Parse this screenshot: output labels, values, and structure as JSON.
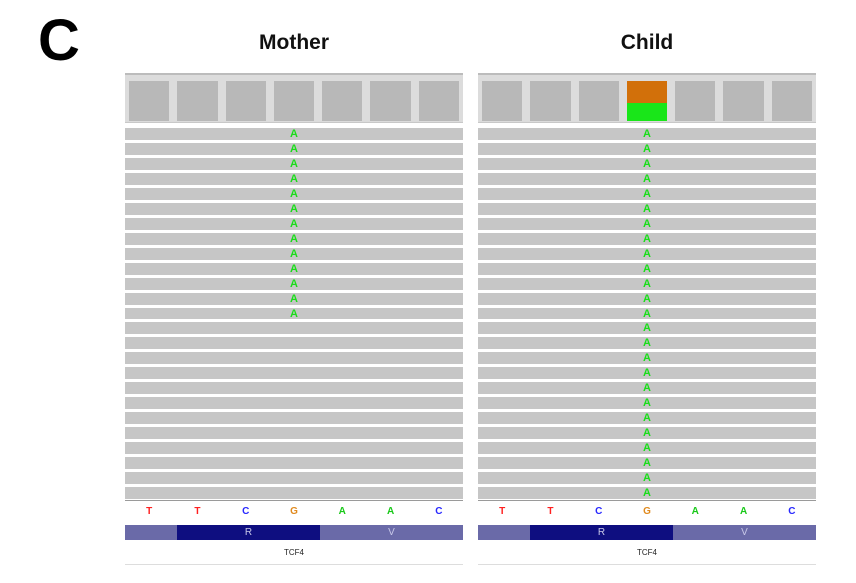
{
  "figure": {
    "panel_label": "C"
  },
  "panels": [
    {
      "title": "Mother",
      "read_count": 25,
      "alt_read_count": 13,
      "coverage_alt_fraction": 0,
      "alt_base": "A"
    },
    {
      "title": "Child",
      "read_count": 25,
      "alt_read_count": 25,
      "coverage_alt_fraction": 0.45,
      "alt_base": "A"
    }
  ],
  "reference": {
    "bases": [
      "T",
      "T",
      "C",
      "G",
      "A",
      "A",
      "C"
    ],
    "variant_index": 3,
    "base_colors": {
      "A": "#19c819",
      "C": "#2828ff",
      "G": "#e08a1e",
      "T": "#ff2020"
    }
  },
  "gene": {
    "name": "TCF4",
    "amino_acids": [
      "R",
      "V"
    ],
    "colors": {
      "track": "#6a6aa8",
      "codon_dark": "#0e0e80"
    }
  }
}
